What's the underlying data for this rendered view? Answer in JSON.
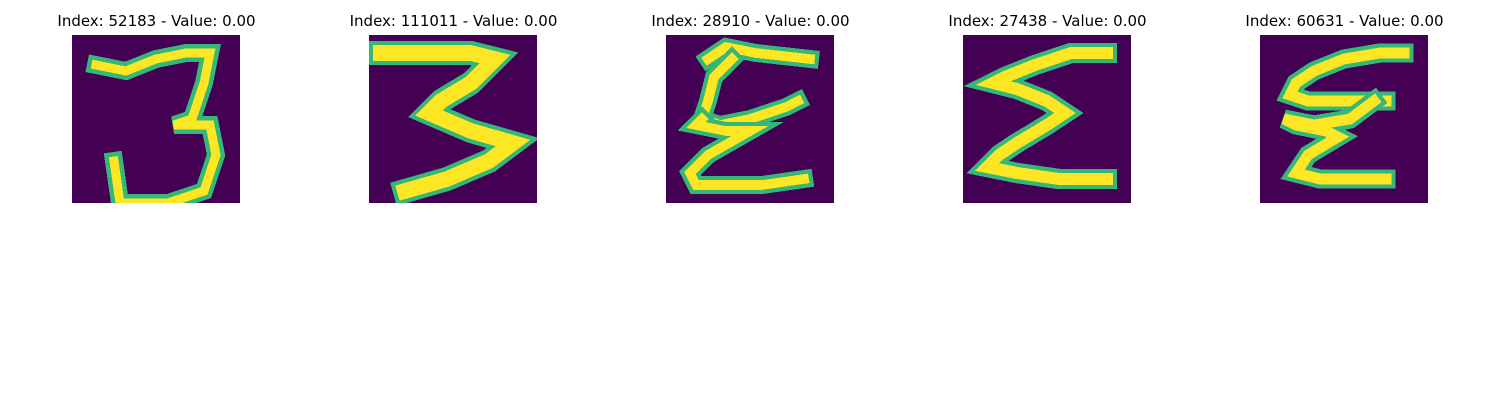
{
  "figure": {
    "panels": [
      {
        "title": "Index: 52183 - Value: 0.00",
        "image_description": "handwritten 3 glyph, viridis colormap"
      },
      {
        "title": "Index: 111011 - Value: 0.00",
        "image_description": "handwritten 3 glyph with thick strokes, viridis colormap"
      },
      {
        "title": "Index: 28910 - Value: 0.00",
        "image_description": "handwritten epsilon-like glyph, viridis colormap"
      },
      {
        "title": "Index: 27438 - Value: 0.00",
        "image_description": "handwritten sigma-like glyph, viridis colormap"
      },
      {
        "title": "Index: 60631 - Value: 0.00",
        "image_description": "handwritten slanted epsilon glyph, viridis colormap"
      }
    ],
    "colors": {
      "background": "#440154",
      "low": "#31688e",
      "mid": "#35b779",
      "high": "#fde725"
    }
  }
}
